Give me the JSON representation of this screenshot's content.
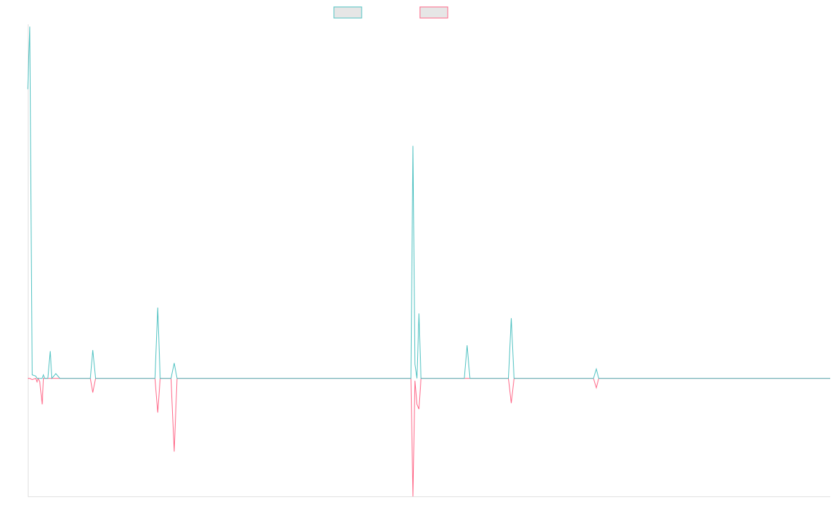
{
  "chart_data": {
    "type": "line",
    "title": "",
    "xlabel": "",
    "ylabel": "",
    "grid": false,
    "legend_position": "top-center",
    "xlim": [
      0,
      200
    ],
    "ylim": [
      -100,
      300
    ],
    "colors": {
      "series_a": "#4bc0c0",
      "series_b": "#ff6384",
      "legend_fill": "#e6e6e6",
      "axis": "#e0e0e0"
    },
    "series": [
      {
        "label": "",
        "x": [
          0,
          0.5,
          1.1,
          2,
          2.3,
          2.6,
          3,
          3.6,
          3.9,
          4.2,
          5,
          5.6,
          6,
          7,
          8,
          9,
          10,
          15.6,
          16.2,
          16.9,
          17.5,
          26,
          27,
          27.7,
          31.7,
          32.4,
          33,
          35.7,
          36.5,
          37.2,
          38,
          46,
          95.5,
          96,
          96.5,
          97,
          97.5,
          98,
          98.7,
          99.3,
          108.8,
          109.5,
          110.2,
          119.8,
          120.5,
          121.2,
          136,
          136.7,
          137.3,
          141,
          141.7,
          142.3,
          200
        ],
        "y": [
          245,
          298,
          3,
          2,
          0,
          0,
          0,
          0,
          3,
          0,
          0,
          23,
          0,
          4,
          0,
          0,
          0,
          0,
          24,
          0,
          0,
          0,
          0,
          0,
          0,
          60,
          0,
          0,
          13,
          0,
          0,
          0,
          0,
          197,
          12,
          0,
          55,
          0,
          0,
          0,
          0,
          28,
          0,
          0,
          51,
          0,
          0,
          0,
          0,
          0,
          8,
          0,
          0
        ]
      },
      {
        "label": "",
        "x": [
          0,
          0.5,
          1.1,
          2,
          2.3,
          2.6,
          3,
          3.6,
          3.9,
          4.2,
          5,
          5.6,
          6,
          7,
          8,
          9,
          10,
          15.6,
          16.2,
          16.9,
          17.5,
          26,
          27,
          27.7,
          31.7,
          32.4,
          33,
          35.7,
          36.5,
          37.2,
          38,
          46,
          95.5,
          96,
          96.5,
          97,
          97.5,
          98,
          98.7,
          99.3,
          108.8,
          109.5,
          110.2,
          119.8,
          120.5,
          121.2,
          136,
          136.7,
          137.3,
          141,
          141.7,
          142.3,
          200
        ],
        "y": [
          0,
          0,
          -1,
          0,
          -3,
          0,
          -3,
          -22,
          0,
          0,
          0,
          0,
          0,
          0,
          0,
          0,
          0,
          0,
          -12,
          0,
          0,
          0,
          0,
          0,
          0,
          -29,
          0,
          0,
          -62,
          0,
          0,
          0,
          0,
          -100,
          -2,
          -22,
          -26,
          0,
          0,
          0,
          0,
          0,
          0,
          0,
          -21,
          0,
          0,
          0,
          0,
          0,
          -8,
          0,
          0
        ]
      }
    ]
  }
}
